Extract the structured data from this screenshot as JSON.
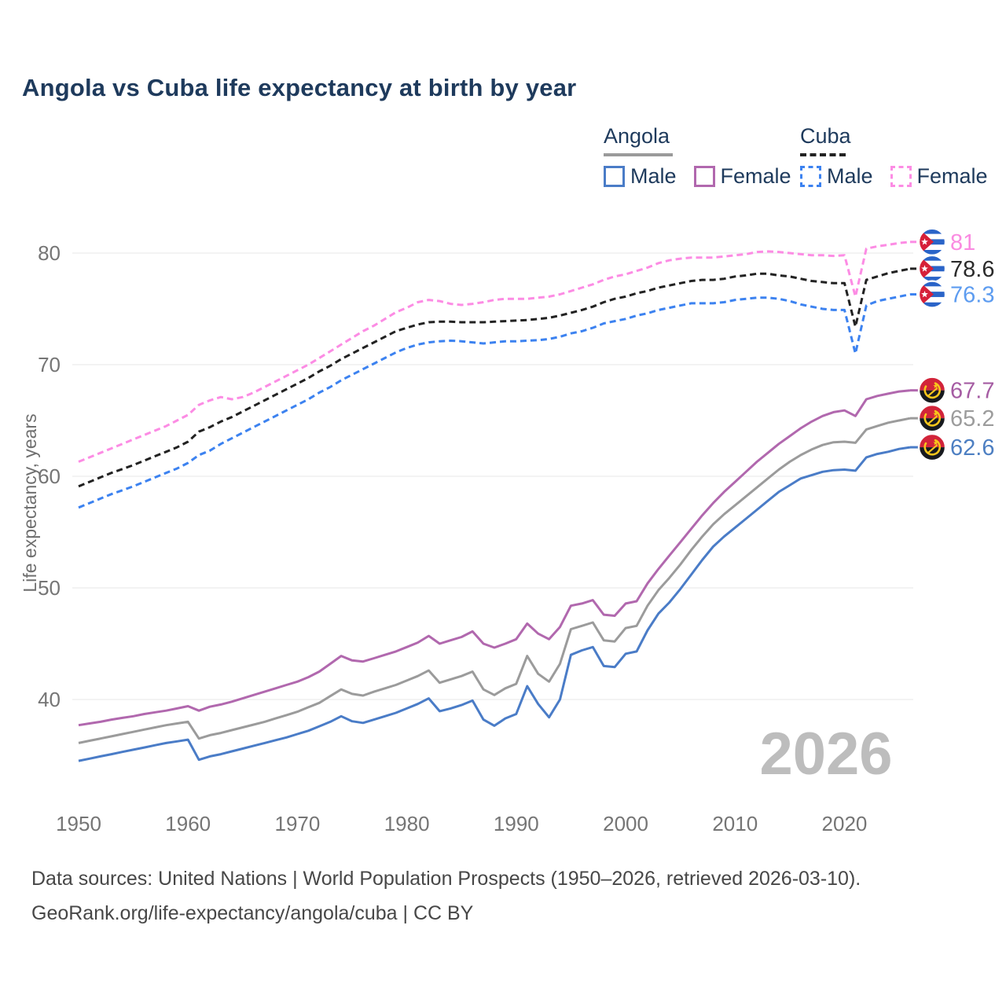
{
  "title": "Angola vs Cuba life expectancy at birth by year",
  "legend": {
    "groups": [
      {
        "country": "Angola",
        "underline_style": "solid",
        "underline_color": "#9a9a9a",
        "items": [
          {
            "label": "Male",
            "color": "#4a7cc7",
            "dashed": false
          },
          {
            "label": "Female",
            "color": "#b168ae",
            "dashed": false
          }
        ]
      },
      {
        "country": "Cuba",
        "underline_style": "dashed",
        "underline_color": "#222222",
        "items": [
          {
            "label": "Male",
            "color": "#3c82f0",
            "dashed": true
          },
          {
            "label": "Female",
            "color": "#fc8ce4",
            "dashed": true
          }
        ]
      }
    ]
  },
  "chart_data": {
    "type": "line",
    "title": "Angola vs Cuba life expectancy at birth by year",
    "xlabel": "",
    "ylabel": "Life expectancy, years",
    "watermark": "2026",
    "grid": "horizontal-only",
    "gridline_color": "#ececec",
    "axis_text_color": "#757575",
    "watermark_color": "#bdbdbd",
    "x_ticks": [
      1950,
      1960,
      1970,
      1980,
      1990,
      2000,
      2010,
      2020
    ],
    "y_ticks": [
      40,
      50,
      60,
      70,
      80
    ],
    "xlim": [
      1950,
      2026
    ],
    "ylim": [
      33,
      82
    ],
    "year_start": 1950,
    "year_end": 2026,
    "legend_position": "top-right",
    "series": [
      {
        "id": "cuba-female",
        "country": "Cuba",
        "sex": "Female",
        "color": "#fc8ce4",
        "dashed": true,
        "flag": "cu",
        "end_label": "81",
        "end_label_color": "#fa8be1",
        "values": [
          61.3,
          61.7,
          62.1,
          62.5,
          62.9,
          63.3,
          63.7,
          64.1,
          64.5,
          65.0,
          65.5,
          66.4,
          66.8,
          67.1,
          66.9,
          67.1,
          67.5,
          68.0,
          68.5,
          69.0,
          69.5,
          70.0,
          70.6,
          71.2,
          71.8,
          72.4,
          73.0,
          73.5,
          74.1,
          74.7,
          75.1,
          75.6,
          75.8,
          75.7,
          75.45,
          75.35,
          75.45,
          75.6,
          75.8,
          75.9,
          75.9,
          75.9,
          76.0,
          76.1,
          76.3,
          76.6,
          76.9,
          77.2,
          77.6,
          77.9,
          78.1,
          78.4,
          78.7,
          79.1,
          79.35,
          79.5,
          79.6,
          79.6,
          79.6,
          79.7,
          79.8,
          79.9,
          80.1,
          80.15,
          80.1,
          80.0,
          79.9,
          79.8,
          79.8,
          79.75,
          79.8,
          76.1,
          80.4,
          80.6,
          80.75,
          80.9,
          81.0
        ]
      },
      {
        "id": "cuba-all",
        "country": "Cuba",
        "sex": "All",
        "color": "#222222",
        "dashed": true,
        "flag": "cu",
        "end_label": "78.6",
        "end_label_color": "#2b2b2b",
        "values": [
          59.1,
          59.5,
          59.9,
          60.3,
          60.65,
          61.0,
          61.4,
          61.8,
          62.2,
          62.6,
          63.1,
          64.0,
          64.4,
          64.9,
          65.3,
          65.8,
          66.3,
          66.8,
          67.3,
          67.8,
          68.3,
          68.8,
          69.4,
          69.9,
          70.5,
          71.0,
          71.5,
          72.0,
          72.5,
          73.0,
          73.3,
          73.6,
          73.8,
          73.85,
          73.85,
          73.8,
          73.8,
          73.8,
          73.85,
          73.9,
          73.95,
          74.0,
          74.1,
          74.2,
          74.4,
          74.65,
          74.9,
          75.2,
          75.6,
          75.9,
          76.1,
          76.4,
          76.6,
          76.9,
          77.1,
          77.3,
          77.5,
          77.6,
          77.6,
          77.7,
          77.9,
          78.0,
          78.15,
          78.15,
          78.0,
          77.9,
          77.7,
          77.5,
          77.4,
          77.3,
          77.3,
          73.4,
          77.6,
          77.9,
          78.2,
          78.4,
          78.6
        ]
      },
      {
        "id": "cuba-male",
        "country": "Cuba",
        "sex": "Male",
        "color": "#3c82f0",
        "dashed": true,
        "flag": "cu",
        "end_label": "76.3",
        "end_label_color": "#5d9cf0",
        "values": [
          57.2,
          57.6,
          58.0,
          58.4,
          58.75,
          59.1,
          59.5,
          59.9,
          60.3,
          60.7,
          61.2,
          61.9,
          62.3,
          62.9,
          63.4,
          63.9,
          64.4,
          64.9,
          65.4,
          65.9,
          66.4,
          66.9,
          67.5,
          68.0,
          68.6,
          69.1,
          69.6,
          70.1,
          70.6,
          71.1,
          71.5,
          71.8,
          72.0,
          72.1,
          72.15,
          72.1,
          72.0,
          71.9,
          72.0,
          72.1,
          72.1,
          72.15,
          72.2,
          72.3,
          72.5,
          72.8,
          73.0,
          73.3,
          73.7,
          73.9,
          74.1,
          74.4,
          74.6,
          74.9,
          75.1,
          75.3,
          75.5,
          75.5,
          75.5,
          75.6,
          75.8,
          75.9,
          76.0,
          76.0,
          75.9,
          75.7,
          75.4,
          75.2,
          75.0,
          74.9,
          74.9,
          71.0,
          75.3,
          75.7,
          75.9,
          76.1,
          76.3
        ]
      },
      {
        "id": "angola-female",
        "country": "Angola",
        "sex": "Female",
        "color": "#b168ae",
        "dashed": false,
        "flag": "ao",
        "end_label": "67.7",
        "end_label_color": "#a55ca3",
        "values": [
          37.7,
          37.85,
          38.0,
          38.2,
          38.35,
          38.5,
          38.7,
          38.85,
          39.0,
          39.2,
          39.4,
          39.0,
          39.35,
          39.55,
          39.8,
          40.1,
          40.4,
          40.7,
          41.0,
          41.3,
          41.6,
          42.0,
          42.5,
          43.2,
          43.9,
          43.5,
          43.4,
          43.7,
          44.0,
          44.3,
          44.7,
          45.1,
          45.7,
          45.0,
          45.3,
          45.6,
          46.1,
          45.0,
          44.65,
          45.0,
          45.4,
          46.8,
          45.9,
          45.4,
          46.5,
          48.4,
          48.6,
          48.9,
          47.6,
          47.5,
          48.6,
          48.8,
          50.4,
          51.7,
          52.9,
          54.1,
          55.3,
          56.5,
          57.6,
          58.6,
          59.5,
          60.4,
          61.3,
          62.1,
          62.9,
          63.6,
          64.3,
          64.9,
          65.4,
          65.75,
          65.9,
          65.4,
          66.9,
          67.2,
          67.4,
          67.6,
          67.7
        ]
      },
      {
        "id": "angola-all",
        "country": "Angola",
        "sex": "All",
        "color": "#9b9b9b",
        "dashed": false,
        "flag": "ao",
        "end_label": "65.2",
        "end_label_color": "#9c9c9c",
        "values": [
          36.1,
          36.3,
          36.5,
          36.7,
          36.9,
          37.1,
          37.3,
          37.5,
          37.7,
          37.85,
          38.0,
          36.5,
          36.8,
          37.0,
          37.25,
          37.5,
          37.75,
          38.0,
          38.3,
          38.6,
          38.9,
          39.3,
          39.7,
          40.3,
          40.9,
          40.5,
          40.35,
          40.7,
          41.0,
          41.3,
          41.7,
          42.1,
          42.6,
          41.5,
          41.8,
          42.1,
          42.5,
          40.9,
          40.4,
          41.0,
          41.4,
          43.9,
          42.3,
          41.6,
          43.2,
          46.3,
          46.6,
          46.9,
          45.3,
          45.2,
          46.4,
          46.6,
          48.4,
          49.8,
          50.9,
          52.1,
          53.4,
          54.6,
          55.7,
          56.6,
          57.4,
          58.2,
          59.0,
          59.8,
          60.6,
          61.3,
          61.9,
          62.4,
          62.8,
          63.05,
          63.1,
          63.0,
          64.2,
          64.5,
          64.8,
          65.0,
          65.2
        ]
      },
      {
        "id": "angola-male",
        "country": "Angola",
        "sex": "Male",
        "color": "#4a7cc7",
        "dashed": false,
        "flag": "ao",
        "end_label": "62.6",
        "end_label_color": "#4d7fc2",
        "values": [
          34.5,
          34.7,
          34.9,
          35.1,
          35.3,
          35.5,
          35.7,
          35.9,
          36.1,
          36.25,
          36.4,
          34.6,
          34.9,
          35.1,
          35.35,
          35.6,
          35.85,
          36.1,
          36.35,
          36.6,
          36.9,
          37.2,
          37.6,
          38.0,
          38.5,
          38.05,
          37.9,
          38.2,
          38.5,
          38.8,
          39.2,
          39.6,
          40.1,
          38.95,
          39.2,
          39.5,
          39.9,
          38.2,
          37.65,
          38.3,
          38.7,
          41.2,
          39.6,
          38.4,
          40.0,
          44.0,
          44.4,
          44.7,
          43.0,
          42.9,
          44.1,
          44.3,
          46.2,
          47.7,
          48.7,
          49.9,
          51.2,
          52.5,
          53.7,
          54.6,
          55.4,
          56.2,
          57.0,
          57.8,
          58.6,
          59.2,
          59.8,
          60.1,
          60.4,
          60.55,
          60.6,
          60.5,
          61.7,
          62.0,
          62.2,
          62.45,
          62.6
        ]
      }
    ],
    "flag_colors": {
      "cuba": {
        "blue": "#2a64c8",
        "red": "#d62039",
        "white": "#ffffff"
      },
      "angola": {
        "red": "#d2243a",
        "black": "#171a1f",
        "yellow": "#f7c61b"
      }
    }
  },
  "footer": {
    "line1": "Data sources: United Nations | World Population Prospects (1950–2026, retrieved 2026-03-10).",
    "line2": "GeoRank.org/life-expectancy/angola/cuba | CC BY"
  }
}
